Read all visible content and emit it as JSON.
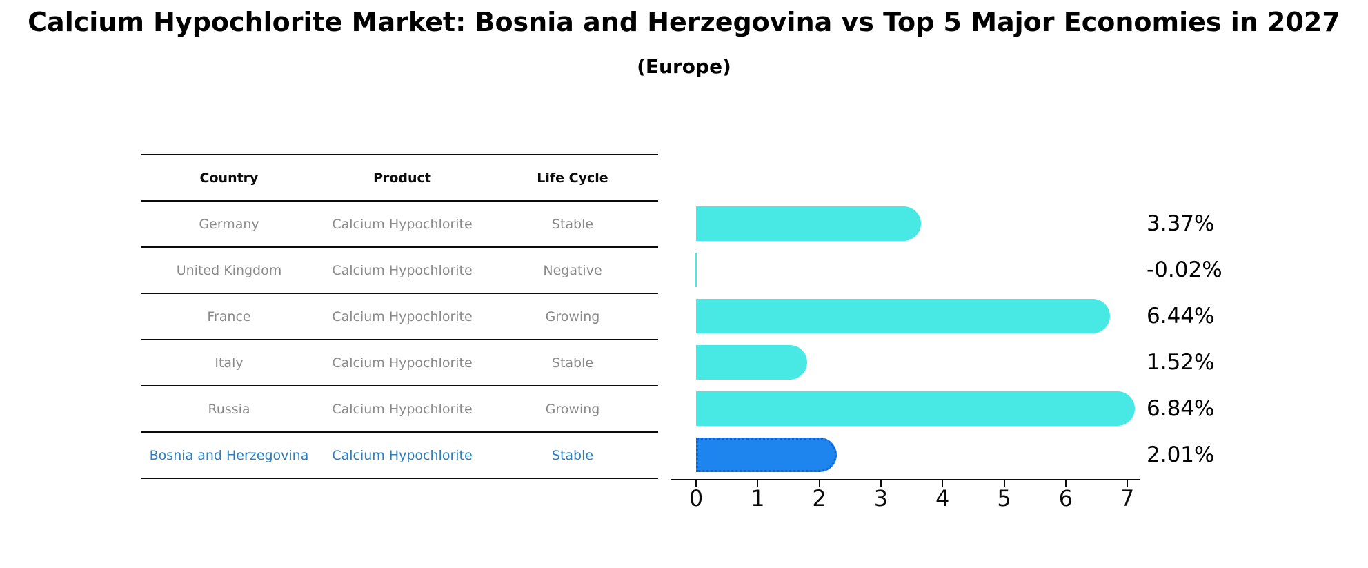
{
  "title": "Calcium Hypochlorite Market: Bosnia and Herzegovina vs Top 5 Major Economies in 2027",
  "subtitle": "(Europe)",
  "table": {
    "headers": [
      "Country",
      "Product",
      "Life Cycle"
    ],
    "rows": [
      {
        "country": "Germany",
        "product": "Calcium Hypochlorite",
        "life_cycle": "Stable",
        "highlighted": false
      },
      {
        "country": "United Kingdom",
        "product": "Calcium Hypochlorite",
        "life_cycle": "Negative",
        "highlighted": false
      },
      {
        "country": "France",
        "product": "Calcium Hypochlorite",
        "life_cycle": "Growing",
        "highlighted": false
      },
      {
        "country": "Italy",
        "product": "Calcium Hypochlorite",
        "life_cycle": "Stable",
        "highlighted": false
      },
      {
        "country": "Russia",
        "product": "Calcium Hypochlorite",
        "life_cycle": "Growing",
        "highlighted": false
      },
      {
        "country": "Bosnia and Herzegovina",
        "product": "Calcium Hypochlorite",
        "life_cycle": "Stable",
        "highlighted": true
      }
    ]
  },
  "chart_data": {
    "type": "bar",
    "orientation": "horizontal",
    "title": "Calcium Hypochlorite Market: Bosnia and Herzegovina vs Top 5 Major Economies in 2027",
    "subtitle": "(Europe)",
    "categories": [
      "Germany",
      "United Kingdom",
      "France",
      "Italy",
      "Russia",
      "Bosnia and Herzegovina"
    ],
    "values": [
      3.37,
      -0.02,
      6.44,
      1.52,
      6.84,
      2.01
    ],
    "value_labels": [
      "3.37%",
      "-0.02%",
      "6.44%",
      "1.52%",
      "6.84%",
      "2.01%"
    ],
    "xlim": [
      0,
      7
    ],
    "x_ticks": [
      "0",
      "1",
      "2",
      "3",
      "4",
      "5",
      "6",
      "7"
    ],
    "grid": false,
    "legend": "none",
    "highlight_category": "Bosnia and Herzegovina",
    "bar_color_default": "#48E8E4",
    "bar_color_highlight": "#1E84EE"
  },
  "colors": {
    "background": "#ffffff",
    "axis": "#0a0a0a",
    "table_text": "#8a8a8a",
    "table_header_text": "#0a0a0a",
    "highlight_text": "#2e7ebc",
    "bar_default": "#48E8E4",
    "bar_highlight": "#1E84EE"
  }
}
